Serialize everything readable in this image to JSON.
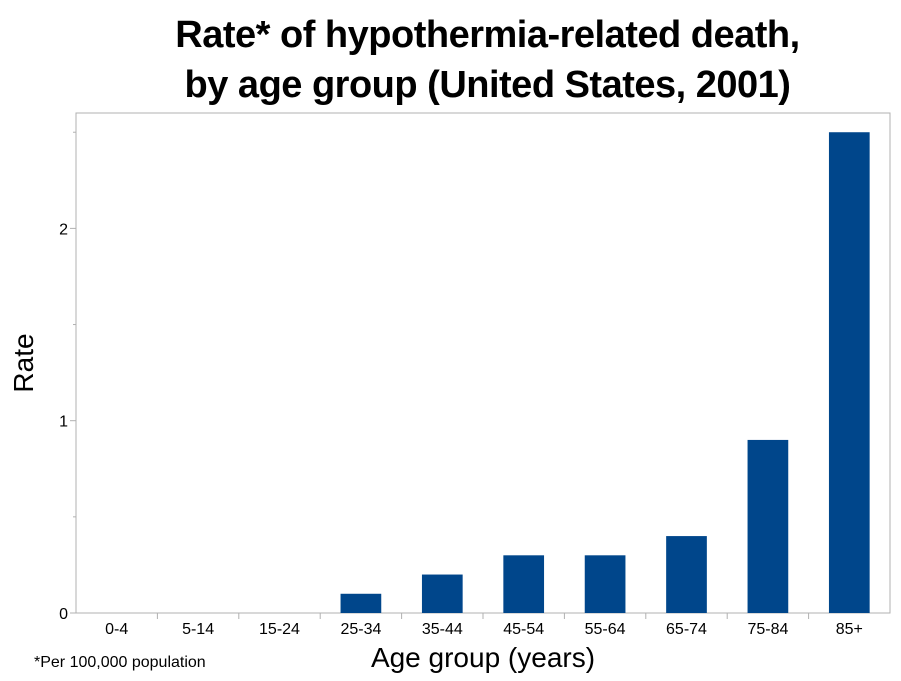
{
  "chart_data": {
    "type": "bar",
    "title_lines": [
      "Rate* of hypothermia-related death,",
      "by age group (United States, 2001)"
    ],
    "xlabel": "Age group (years)",
    "ylabel": "Rate",
    "categories": [
      "0-4",
      "5-14",
      "15-24",
      "25-34",
      "35-44",
      "45-54",
      "55-64",
      "65-74",
      "75-84",
      "85+"
    ],
    "values": [
      0,
      0,
      0,
      0.1,
      0.2,
      0.3,
      0.3,
      0.4,
      0.9,
      2.5
    ],
    "ylim": [
      0,
      2.6
    ],
    "yticks": [
      0,
      1,
      2
    ],
    "y_minor_ticks": [
      0.5,
      1.5,
      2.5
    ],
    "grid": false,
    "bar_color": "#00468b",
    "footnote": "*Per 100,000 population"
  }
}
